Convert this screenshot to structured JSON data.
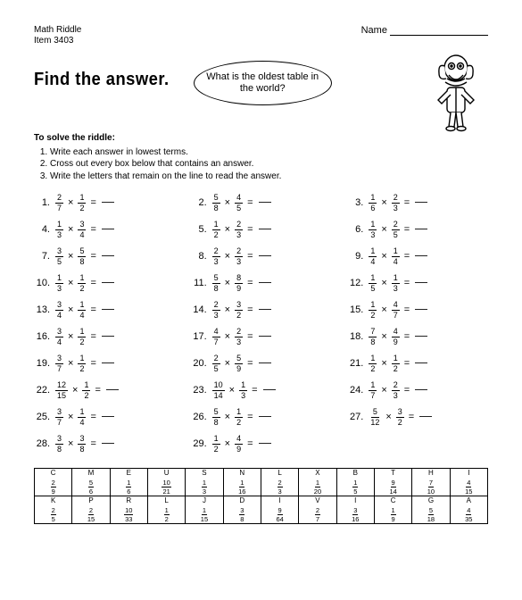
{
  "header": {
    "line1": "Math Riddle",
    "line2": "Item 3403",
    "name_label": "Name"
  },
  "title": "Find the answer.",
  "bubble_text": "What is the oldest table in the world?",
  "instructions": {
    "intro": "To solve the riddle:",
    "steps": [
      "Write each answer in lowest terms.",
      "Cross out every box below that contains an answer.",
      "Write the letters that remain on the line to read the answer."
    ]
  },
  "problems": [
    {
      "n": "1",
      "a": [
        "2",
        "7"
      ],
      "b": [
        "1",
        "2"
      ]
    },
    {
      "n": "2",
      "a": [
        "5",
        "8"
      ],
      "b": [
        "4",
        "5"
      ]
    },
    {
      "n": "3",
      "a": [
        "1",
        "6"
      ],
      "b": [
        "2",
        "3"
      ]
    },
    {
      "n": "4",
      "a": [
        "1",
        "3"
      ],
      "b": [
        "3",
        "4"
      ]
    },
    {
      "n": "5",
      "a": [
        "1",
        "2"
      ],
      "b": [
        "2",
        "3"
      ]
    },
    {
      "n": "6",
      "a": [
        "1",
        "3"
      ],
      "b": [
        "2",
        "5"
      ]
    },
    {
      "n": "7",
      "a": [
        "3",
        "5"
      ],
      "b": [
        "5",
        "8"
      ]
    },
    {
      "n": "8",
      "a": [
        "2",
        "3"
      ],
      "b": [
        "2",
        "3"
      ]
    },
    {
      "n": "9",
      "a": [
        "1",
        "4"
      ],
      "b": [
        "1",
        "4"
      ]
    },
    {
      "n": "10",
      "a": [
        "1",
        "3"
      ],
      "b": [
        "1",
        "2"
      ]
    },
    {
      "n": "11",
      "a": [
        "5",
        "8"
      ],
      "b": [
        "8",
        "9"
      ]
    },
    {
      "n": "12",
      "a": [
        "1",
        "5"
      ],
      "b": [
        "1",
        "3"
      ]
    },
    {
      "n": "13",
      "a": [
        "3",
        "4"
      ],
      "b": [
        "1",
        "4"
      ]
    },
    {
      "n": "14",
      "a": [
        "2",
        "3"
      ],
      "b": [
        "3",
        "2"
      ]
    },
    {
      "n": "15",
      "a": [
        "1",
        "2"
      ],
      "b": [
        "4",
        "7"
      ]
    },
    {
      "n": "16",
      "a": [
        "3",
        "4"
      ],
      "b": [
        "1",
        "2"
      ]
    },
    {
      "n": "17",
      "a": [
        "4",
        "7"
      ],
      "b": [
        "2",
        "3"
      ]
    },
    {
      "n": "18",
      "a": [
        "7",
        "8"
      ],
      "b": [
        "4",
        "9"
      ]
    },
    {
      "n": "19",
      "a": [
        "3",
        "7"
      ],
      "b": [
        "1",
        "2"
      ]
    },
    {
      "n": "20",
      "a": [
        "2",
        "5"
      ],
      "b": [
        "5",
        "9"
      ]
    },
    {
      "n": "21",
      "a": [
        "1",
        "2"
      ],
      "b": [
        "1",
        "2"
      ]
    },
    {
      "n": "22",
      "a": [
        "12",
        "15"
      ],
      "b": [
        "1",
        "2"
      ]
    },
    {
      "n": "23",
      "a": [
        "10",
        "14"
      ],
      "b": [
        "1",
        "3"
      ]
    },
    {
      "n": "24",
      "a": [
        "1",
        "7"
      ],
      "b": [
        "2",
        "3"
      ]
    },
    {
      "n": "25",
      "a": [
        "3",
        "7"
      ],
      "b": [
        "1",
        "4"
      ]
    },
    {
      "n": "26",
      "a": [
        "5",
        "8"
      ],
      "b": [
        "1",
        "2"
      ]
    },
    {
      "n": "27",
      "a": [
        "5",
        "12"
      ],
      "b": [
        "3",
        "2"
      ]
    },
    {
      "n": "28",
      "a": [
        "3",
        "8"
      ],
      "b": [
        "3",
        "8"
      ]
    },
    {
      "n": "29",
      "a": [
        "1",
        "2"
      ],
      "b": [
        "4",
        "9"
      ]
    }
  ],
  "table_row1": [
    {
      "l": "C",
      "f": [
        "2",
        "9"
      ]
    },
    {
      "l": "M",
      "f": [
        "5",
        "6"
      ]
    },
    {
      "l": "E",
      "f": [
        "1",
        "6"
      ]
    },
    {
      "l": "U",
      "f": [
        "10",
        "21"
      ]
    },
    {
      "l": "S",
      "f": [
        "1",
        "3"
      ]
    },
    {
      "l": "N",
      "f": [
        "1",
        "16"
      ]
    },
    {
      "l": "L",
      "f": [
        "2",
        "3"
      ]
    },
    {
      "l": "X",
      "f": [
        "1",
        "20"
      ]
    },
    {
      "l": "B",
      "f": [
        "1",
        "5"
      ]
    },
    {
      "l": "T",
      "f": [
        "9",
        "14"
      ]
    },
    {
      "l": "H",
      "f": [
        "7",
        "10"
      ]
    },
    {
      "l": "I",
      "f": [
        "4",
        "15"
      ]
    }
  ],
  "table_row2": [
    {
      "l": "K",
      "f": [
        "2",
        "5"
      ]
    },
    {
      "l": "P",
      "f": [
        "2",
        "15"
      ]
    },
    {
      "l": "R",
      "f": [
        "10",
        "33"
      ]
    },
    {
      "l": "L",
      "f": [
        "1",
        "2"
      ]
    },
    {
      "l": "J",
      "f": [
        "1",
        "15"
      ]
    },
    {
      "l": "D",
      "f": [
        "3",
        "8"
      ]
    },
    {
      "l": "I",
      "f": [
        "9",
        "64"
      ]
    },
    {
      "l": "V",
      "f": [
        "2",
        "7"
      ]
    },
    {
      "l": "I",
      "f": [
        "3",
        "16"
      ]
    },
    {
      "l": "C",
      "f": [
        "1",
        "9"
      ]
    },
    {
      "l": "G",
      "f": [
        "5",
        "18"
      ]
    },
    {
      "l": "A",
      "f": [
        "4",
        "35"
      ]
    }
  ]
}
